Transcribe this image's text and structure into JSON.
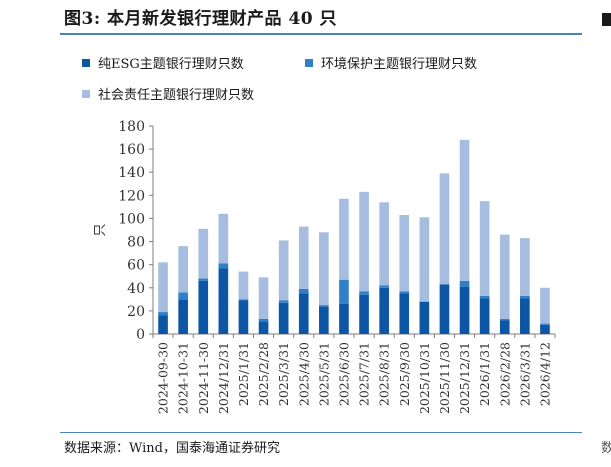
{
  "header": {
    "title": "图3:  本月新发银行理财产品 40 只"
  },
  "footer": {
    "source": "数据来源：Wind，国泰海通证券研究"
  },
  "colors": {
    "series_dark": "#0d56a6",
    "series_mid": "#2f80c8",
    "series_light": "#a6bde0",
    "axis": "#7f7f7f",
    "rule": "#4a82c0"
  },
  "chart_data": {
    "type": "bar",
    "stacked": true,
    "categories": [
      "2024-09-30",
      "2024-10-31",
      "2024-11-30",
      "2024/12/31",
      "2025/1/31",
      "2025/2/28",
      "2025/3/31",
      "2025/4/30",
      "2025/5/31",
      "2025/6/30",
      "2025/7/31",
      "2025/8/31",
      "2025/9/30",
      "2025/10/31",
      "2025/11/30",
      "2025/12/31",
      "2026/1/31",
      "2026/2/28",
      "2026/3/31",
      "2026/4/12"
    ],
    "series": [
      {
        "name": "纯ESG主题银行理财只数",
        "color": "#0d56a6",
        "values": [
          16,
          30,
          46,
          57,
          29,
          11,
          27,
          35,
          24,
          26,
          34,
          40,
          35,
          28,
          43,
          41,
          31,
          12,
          31,
          8
        ]
      },
      {
        "name": "环境保护主题银行理财只数",
        "color": "#2f80c8",
        "values": [
          3,
          6,
          2,
          4,
          1,
          2,
          2,
          4,
          1,
          21,
          3,
          2,
          2,
          0,
          0,
          5,
          2,
          1,
          2,
          1
        ]
      },
      {
        "name": "社会责任主题银行理财只数",
        "color": "#a6bde0",
        "values": [
          43,
          40,
          43,
          43,
          24,
          36,
          52,
          54,
          63,
          70,
          86,
          72,
          66,
          73,
          96,
          122,
          82,
          73,
          50,
          31
        ]
      }
    ],
    "title": "",
    "xlabel": "",
    "ylabel": "只",
    "ylim": [
      0,
      180
    ],
    "yticks": [
      0,
      20,
      40,
      60,
      80,
      100,
      120,
      140,
      160,
      180
    ],
    "grid": false,
    "legend_position": "top"
  }
}
